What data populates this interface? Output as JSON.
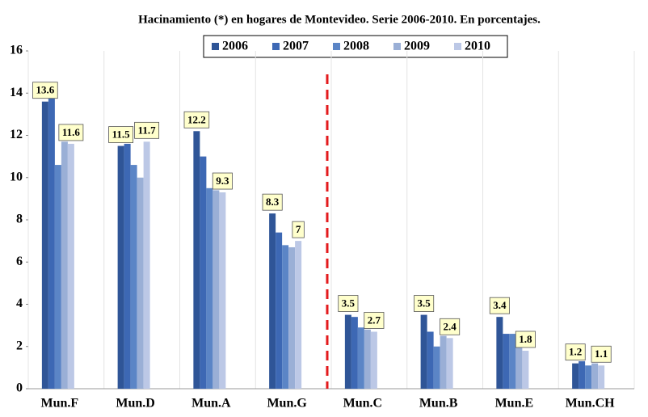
{
  "chart_data": {
    "type": "bar",
    "title": "Hacinamiento (*) en hogares de Montevideo. Serie 2006-2010. En porcentajes.",
    "categories": [
      "Mun.F",
      "Mun.D",
      "Mun.A",
      "Mun.G",
      "Mun.C",
      "Mun.B",
      "Mun.E",
      "Mun.CH"
    ],
    "series": [
      {
        "name": "2006",
        "color": "#2f5597",
        "values": [
          13.6,
          11.5,
          12.2,
          8.3,
          3.5,
          3.5,
          3.4,
          1.2
        ],
        "show_labels": true
      },
      {
        "name": "2007",
        "color": "#3d68b4",
        "values": [
          13.8,
          11.6,
          11.0,
          7.4,
          3.4,
          2.7,
          2.6,
          1.3
        ]
      },
      {
        "name": "2008",
        "color": "#5b85c6",
        "values": [
          10.6,
          10.6,
          9.5,
          6.8,
          2.9,
          2.0,
          2.6,
          1.1
        ]
      },
      {
        "name": "2009",
        "color": "#9aafd6",
        "values": [
          11.7,
          10.0,
          9.4,
          6.7,
          2.8,
          2.5,
          2.0,
          1.2
        ]
      },
      {
        "name": "2010",
        "color": "#bcc8e6",
        "values": [
          11.6,
          11.7,
          9.3,
          7,
          2.7,
          2.4,
          1.8,
          1.1
        ],
        "show_labels": true
      }
    ],
    "ylim": [
      0,
      16
    ],
    "yticks": [
      0,
      2,
      4,
      6,
      8,
      10,
      12,
      14,
      16
    ],
    "grid": false,
    "legend": "top"
  }
}
